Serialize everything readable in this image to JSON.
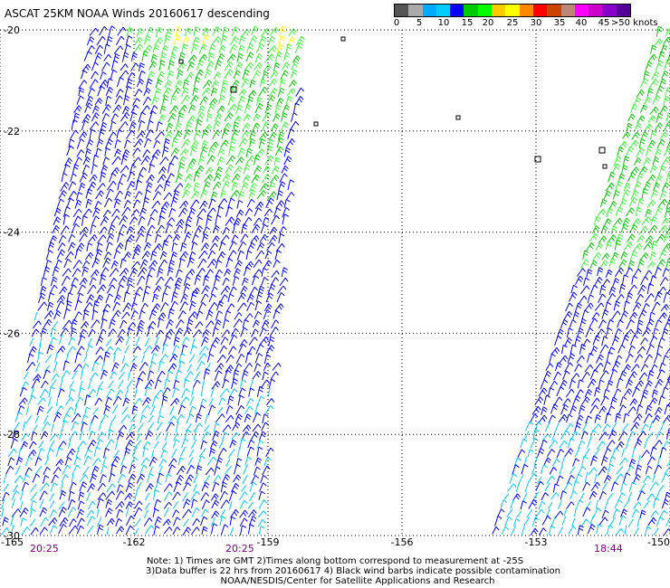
{
  "title": "ASCAT 25KM NOAA Winds 20160617 descending",
  "colorbar": {
    "colors": [
      "#555555",
      "#aaaaaa",
      "#00aaff",
      "#00ccff",
      "#0000ff",
      "#00cc00",
      "#00ff00",
      "#ffcc00",
      "#ffff00",
      "#ff8800",
      "#ff0000",
      "#cc4400",
      "#bb8877",
      "#ff00ff",
      "#cc00cc",
      "#8800cc",
      "#550099"
    ],
    "labels": [
      "0",
      "5",
      "10",
      "15",
      "20",
      "25",
      "30",
      "35",
      "40",
      "45",
      ">50 knots"
    ],
    "unit": "knots"
  },
  "map": {
    "lat_labels": [
      "-20",
      "-22",
      "-24",
      "-26",
      "-28",
      "-30"
    ],
    "lon_labels": [
      "-165",
      "-162",
      "-159",
      "-156",
      "-153",
      "-150"
    ],
    "lat_range": [
      -30,
      -20
    ],
    "lon_range": [
      -165,
      -150
    ],
    "grid": "dotted"
  },
  "pass_times": [
    "20:25",
    "20:25",
    "18:44"
  ],
  "notes": [
    "Note: 1) Times are GMT 2)Times along bottom correspond to measurement at -25S",
    "3)Data buffer is 22 hrs from 20160617 4) Black wind barbs indicate possible contamination",
    "NOAA/NESDIS/Center for Satellite Applications and Research"
  ],
  "barb_colors": {
    "cyan": "#00ccff",
    "blue": "#0000ff",
    "dark_green": "#00cc00",
    "light_green": "#33ff33",
    "yellow": "#ffff00",
    "black": "#000000"
  }
}
